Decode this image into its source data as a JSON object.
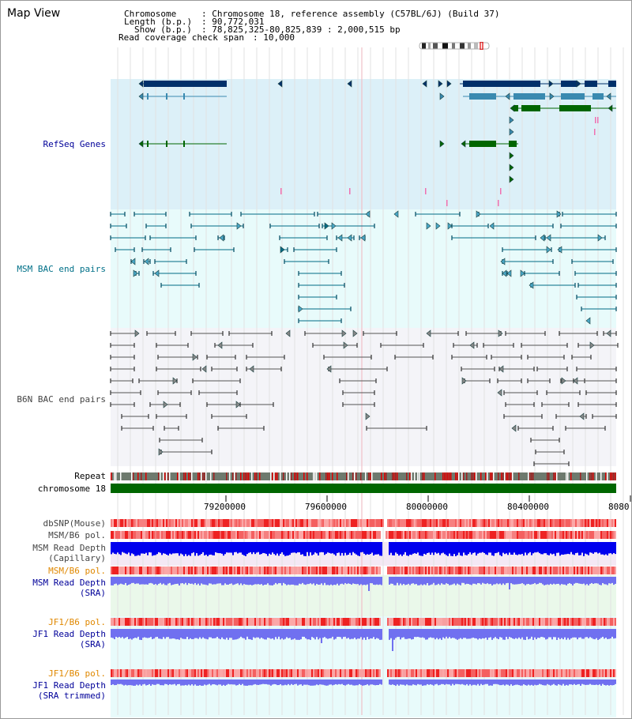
{
  "title": "Map View",
  "info": {
    "chromosome_label": "Chromosome",
    "chromosome_value": ": Chromosome 18, reference assembly (C57BL/6J) (Build 37)",
    "length_label": "Length (b.p.)",
    "length_value": ": 90,772,031",
    "show_label": "Show (b.p.)",
    "show_value": ": 78,825,325-80,825,839 : 2,000,515 bp",
    "coverage_label": "Read coverage check span",
    "coverage_value": ": 10,000"
  },
  "tracks": {
    "refseq": "RefSeq Genes",
    "msm_bac": "MSM BAC end pairs",
    "b6n_bac": "B6N BAC end pairs",
    "repeat": "Repeat",
    "chromosome": "chromosome 18",
    "dbsnp": "dbSNP(Mouse)",
    "msm_b6_pol": "MSM/B6 pol.",
    "msm_depth_cap_1": "MSM Read Depth",
    "msm_depth_cap_2": "(Capillary)",
    "msm_b6_pol_2": "MSM/B6 pol.",
    "msm_depth_sra_1": "MSM Read Depth",
    "msm_depth_sra_2": "(SRA)",
    "jf1_b6_pol": "JF1/B6 pol.",
    "jf1_depth_sra_1": "JF1 Read Depth",
    "jf1_depth_sra_2": "(SRA)",
    "jf1_b6_pol_2": "JF1/B6 pol.",
    "jf1_depth_trim_1": "JF1 Read Depth",
    "jf1_depth_trim_2": "(SRA trimmed)"
  },
  "axis_ticks": [
    "79200000",
    "79600000",
    "80000000",
    "80400000",
    "8080"
  ],
  "colors": {
    "refseq_bg": "#dcf0f8",
    "msm_bac_bg": "#e8fbfb",
    "b6n_bac_bg": "#f4f4f8",
    "gene_dark": "#00306a",
    "gene_mid": "#3a8ab0",
    "gene_green": "#006600",
    "msm_line": "#006b85",
    "b6n_line": "#555555",
    "depth_blue": "#0000ee",
    "depth_light": "#7070f0",
    "pol_red": "#ee3333",
    "label_blue": "#000099",
    "label_teal": "#007088",
    "label_orange": "#e08800",
    "label_gray": "#444444"
  },
  "icons": [
    "cytoband-ideogram-icon"
  ]
}
